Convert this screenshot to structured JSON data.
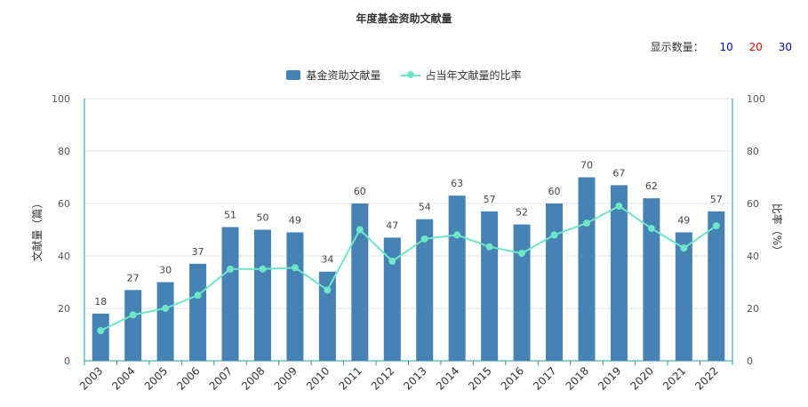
{
  "chart_data": {
    "type": "bar",
    "title": "年度基金资助文献量",
    "categories": [
      "2003",
      "2004",
      "2005",
      "2006",
      "2007",
      "2008",
      "2009",
      "2010",
      "2011",
      "2012",
      "2013",
      "2014",
      "2015",
      "2016",
      "2017",
      "2018",
      "2019",
      "2020",
      "2021",
      "2022"
    ],
    "series": [
      {
        "name": "基金资助文献量",
        "type": "bar",
        "axis": "left",
        "color": "#4682b4",
        "values": [
          18,
          27,
          30,
          37,
          51,
          50,
          49,
          34,
          60,
          47,
          54,
          63,
          57,
          52,
          60,
          70,
          67,
          62,
          49,
          57
        ]
      },
      {
        "name": "占当年文献量的比率",
        "type": "line",
        "axis": "right",
        "color": "#6ee7c7",
        "values": [
          11.5,
          17.5,
          20,
          25,
          35,
          35,
          35.5,
          27,
          50,
          38,
          46.5,
          48,
          43.5,
          41,
          48,
          52.5,
          59,
          50.5,
          43,
          51.5
        ]
      }
    ],
    "ylabel": "文献量（篇）",
    "ylabel_right": "比率（%）",
    "ylim": [
      0,
      100
    ],
    "ylim_right": [
      0,
      100
    ],
    "yticks": [
      0,
      20,
      40,
      60,
      80,
      100
    ],
    "grid": true,
    "legend_position": "top-center"
  },
  "display_count": {
    "label": "显示数量：",
    "options": [
      "10",
      "20",
      "30"
    ]
  }
}
